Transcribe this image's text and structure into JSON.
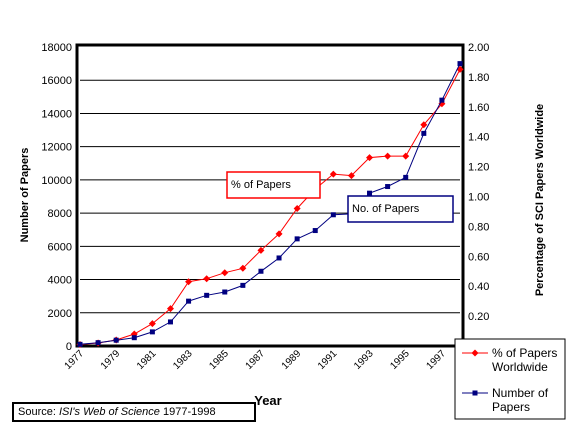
{
  "chart_data": {
    "type": "line",
    "title": "",
    "xlabel": "Year",
    "ylabel": "Number of Papers",
    "y2label": "Percentage of SCI Papers Worldwide",
    "ylim": [
      0,
      18000
    ],
    "y2lim": [
      0,
      2.0
    ],
    "xlim": [
      1977,
      1998
    ],
    "y_ticks": [
      "0",
      "2000",
      "4000",
      "6000",
      "8000",
      "10000",
      "12000",
      "14000",
      "16000",
      "18000"
    ],
    "y2_ticks": [
      "0.20",
      "0.40",
      "0.60",
      "0.80",
      "1.00",
      "1.20",
      "1.40",
      "1.60",
      "1.80",
      "2.00"
    ],
    "x_ticks": [
      "1977",
      "1979",
      "1981",
      "1983",
      "1985",
      "1987",
      "1989",
      "1991",
      "1993",
      "1995",
      "1997"
    ],
    "grid": "horizontal",
    "legend_position": "bottom-right",
    "x": [
      1977,
      1978,
      1979,
      1980,
      1981,
      1982,
      1983,
      1984,
      1985,
      1986,
      1987,
      1988,
      1989,
      1990,
      1991,
      1992,
      1993,
      1994,
      1995,
      1996,
      1997,
      1998
    ],
    "series": [
      {
        "name": "% of Papers Worldwide",
        "axis": "right",
        "color": "#ff0000",
        "marker": "diamond",
        "values": [
          0.01,
          0.02,
          0.04,
          0.08,
          0.15,
          0.25,
          0.43,
          0.45,
          0.49,
          0.52,
          0.64,
          0.75,
          0.92,
          1.05,
          1.15,
          1.14,
          1.26,
          1.27,
          1.27,
          1.48,
          1.62,
          1.85
        ]
      },
      {
        "name": "Number of Papers",
        "axis": "left",
        "color": "#000080",
        "marker": "square",
        "values": [
          100,
          200,
          350,
          500,
          850,
          1450,
          2700,
          3050,
          3250,
          3650,
          4500,
          5300,
          6450,
          6950,
          7900,
          7950,
          9200,
          9600,
          10150,
          12800,
          14800,
          17000
        ]
      }
    ],
    "annotations": [
      {
        "text": "% of Papers",
        "color": "#ff0000",
        "series": "% of Papers Worldwide"
      },
      {
        "text": "No. of Papers",
        "color": "#000080",
        "series": "Number of Papers"
      }
    ],
    "legend": [
      {
        "line1": "% of Papers",
        "line2": "Worldwide",
        "color": "#ff0000",
        "marker": "diamond"
      },
      {
        "line1": "Number of",
        "line2": "Papers",
        "color": "#000080",
        "marker": "square"
      }
    ],
    "source": {
      "prefix": "Source: ",
      "italic": "ISI's Web of Science",
      "suffix": " 1977-1998"
    }
  }
}
